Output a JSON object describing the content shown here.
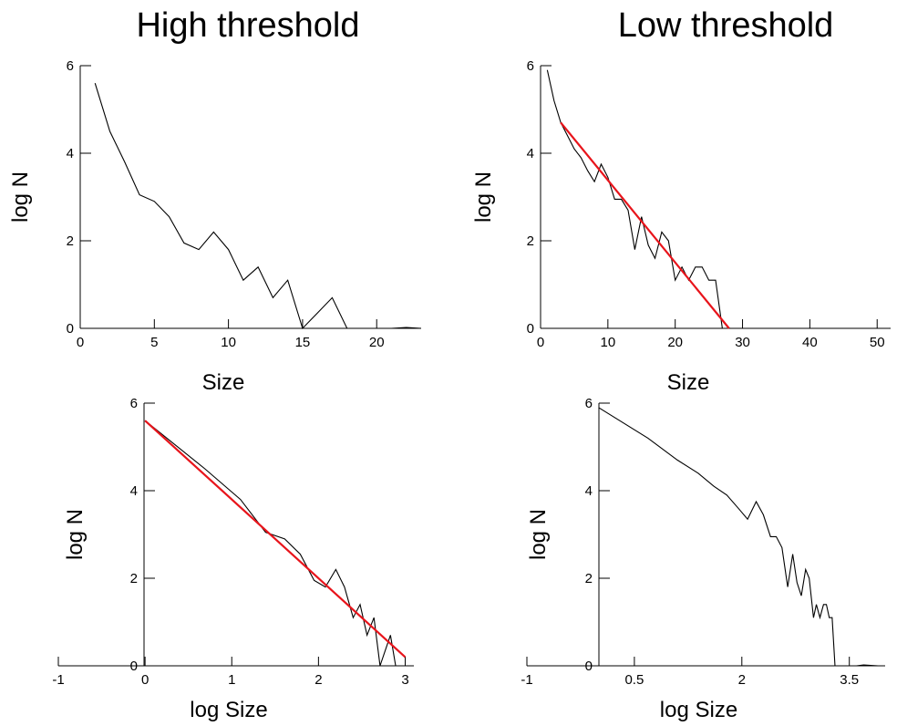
{
  "titles": {
    "left": "High threshold",
    "right": "Low threshold"
  },
  "chart_data": [
    {
      "id": "high-linear",
      "type": "line",
      "xlabel": "Size",
      "ylabel": "log N",
      "xlim": [
        0,
        23
      ],
      "ylim": [
        0,
        6
      ],
      "xticks": [
        0,
        5,
        10,
        15,
        20
      ],
      "yticks": [
        0,
        2,
        4,
        6
      ],
      "series": [
        {
          "values_x": [
            1,
            2,
            3,
            4,
            5,
            6,
            7,
            8,
            9,
            10,
            11,
            12,
            13,
            14,
            15,
            16,
            17,
            18,
            19,
            20,
            21,
            22,
            23
          ],
          "values_y": [
            5.6,
            4.5,
            3.8,
            3.05,
            2.9,
            2.55,
            1.95,
            1.8,
            2.2,
            1.8,
            1.1,
            1.4,
            0.7,
            1.1,
            0,
            0.35,
            0.7,
            0,
            0,
            0,
            0,
            0.02,
            0
          ]
        }
      ]
    },
    {
      "id": "low-linear",
      "type": "line",
      "xlabel": "Size",
      "ylabel": "log N",
      "xlim": [
        0,
        52
      ],
      "ylim": [
        0,
        6
      ],
      "xticks": [
        0,
        10,
        20,
        30,
        40,
        50
      ],
      "yticks": [
        0,
        2,
        4,
        6
      ],
      "series": [
        {
          "values_x": [
            1,
            2,
            3,
            4,
            5,
            6,
            7,
            8,
            9,
            10,
            11,
            12,
            13,
            14,
            15,
            16,
            17,
            18,
            19,
            20,
            21,
            22,
            23,
            24,
            25,
            26,
            27,
            28,
            29,
            30,
            35,
            40,
            45,
            50
          ],
          "values_y": [
            5.9,
            5.2,
            4.7,
            4.4,
            4.1,
            3.9,
            3.6,
            3.35,
            3.75,
            3.45,
            2.95,
            2.95,
            2.7,
            1.8,
            2.55,
            1.9,
            1.6,
            2.2,
            2.0,
            1.1,
            1.4,
            1.1,
            1.4,
            1.4,
            1.1,
            1.1,
            0,
            0,
            0,
            0,
            0,
            0,
            0,
            0
          ]
        },
        {
          "fit": true,
          "values_x": [
            3,
            28
          ],
          "values_y": [
            4.7,
            0
          ]
        }
      ]
    },
    {
      "id": "high-log",
      "type": "line",
      "xlabel": "log Size",
      "ylabel": "log N",
      "xlim": [
        -1,
        3.1
      ],
      "ylim": [
        0,
        6
      ],
      "xticks": [
        -1,
        0,
        1,
        2,
        3
      ],
      "yticks": [
        0,
        2,
        4,
        6
      ],
      "series": [
        {
          "values_x": [
            0,
            0.69,
            1.1,
            1.39,
            1.61,
            1.79,
            1.95,
            2.08,
            2.2,
            2.3,
            2.4,
            2.48,
            2.56,
            2.64,
            2.71,
            2.77,
            2.83,
            2.89,
            2.94,
            3.0
          ],
          "values_y": [
            5.6,
            4.5,
            3.8,
            3.05,
            2.9,
            2.55,
            1.95,
            1.8,
            2.2,
            1.8,
            1.1,
            1.4,
            0.7,
            1.1,
            0,
            0.35,
            0.7,
            0,
            0,
            0
          ]
        },
        {
          "fit": true,
          "values_x": [
            0,
            3.0
          ],
          "values_y": [
            5.6,
            0.2
          ]
        }
      ]
    },
    {
      "id": "low-log",
      "type": "line",
      "xlabel": "log Size",
      "ylabel": "log N",
      "xlim": [
        -1,
        4.0
      ],
      "ylim": [
        0,
        6
      ],
      "xticks": [
        -1,
        0.5,
        2,
        3.5
      ],
      "yticks": [
        0,
        2,
        4,
        6
      ],
      "series": [
        {
          "values_x": [
            0.0,
            0.69,
            1.1,
            1.39,
            1.61,
            1.79,
            1.95,
            2.08,
            2.2,
            2.3,
            2.4,
            2.48,
            2.56,
            2.64,
            2.71,
            2.77,
            2.83,
            2.89,
            2.94,
            3.0,
            3.04,
            3.09,
            3.14,
            3.18,
            3.22,
            3.26,
            3.3,
            3.33,
            3.37,
            3.4,
            3.43,
            3.5,
            3.6,
            3.7,
            3.9
          ],
          "values_y": [
            5.9,
            5.2,
            4.7,
            4.4,
            4.1,
            3.9,
            3.6,
            3.35,
            3.75,
            3.45,
            2.95,
            2.95,
            2.7,
            1.8,
            2.55,
            1.9,
            1.6,
            2.2,
            2.0,
            1.1,
            1.4,
            1.1,
            1.4,
            1.4,
            1.1,
            1.1,
            0,
            0,
            0,
            0,
            0,
            0,
            0,
            0.02,
            0
          ]
        }
      ]
    }
  ]
}
